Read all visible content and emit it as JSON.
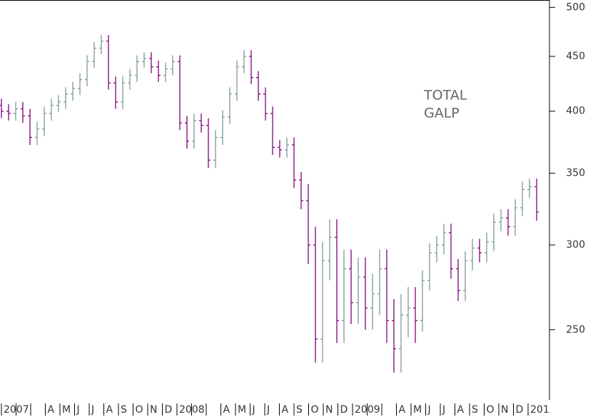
{
  "chart_data": {
    "type": "ohlc",
    "annotation": [
      "TOTAL",
      "GALP"
    ],
    "months": [
      "2007",
      null,
      null,
      "A",
      "M",
      "J",
      "J",
      "A",
      "S",
      "O",
      "N",
      "D",
      "2008",
      null,
      null,
      "A",
      "M",
      "J",
      "J",
      "A",
      "S",
      "O",
      "N",
      "D",
      "2009",
      null,
      null,
      "A",
      "M",
      "J",
      "J",
      "A",
      "S",
      "O",
      "N",
      "D",
      "201"
    ],
    "open": [
      405,
      400,
      398,
      402,
      396,
      378,
      385,
      398,
      405,
      408,
      415,
      420,
      428,
      445,
      458,
      465,
      425,
      408,
      425,
      432,
      445,
      448,
      440,
      432,
      438,
      445,
      390,
      375,
      392,
      388,
      360,
      378,
      395,
      415,
      440,
      450,
      430,
      415,
      398,
      370,
      368,
      372,
      345,
      330,
      300,
      245,
      290,
      305,
      255,
      285,
      265,
      280,
      262,
      270,
      285,
      255,
      240,
      258,
      262,
      255,
      278,
      295,
      300,
      308,
      285,
      272,
      290,
      298,
      295,
      302,
      315,
      318,
      312,
      325,
      338,
      340
    ],
    "high": [
      411,
      406,
      408,
      408,
      402,
      391,
      404,
      411,
      414,
      421,
      426,
      434,
      451,
      464,
      471,
      471,
      431,
      431,
      438,
      451,
      454,
      454,
      446,
      444,
      451,
      451,
      396,
      398,
      398,
      394,
      384,
      401,
      421,
      446,
      456,
      456,
      436,
      421,
      404,
      376,
      378,
      378,
      351,
      342,
      312,
      302,
      317,
      317,
      297,
      297,
      292,
      292,
      282,
      297,
      297,
      267,
      270,
      274,
      274,
      284,
      301,
      306,
      314,
      314,
      291,
      296,
      304,
      304,
      308,
      321,
      324,
      324,
      331,
      344,
      346,
      346
    ],
    "low": [
      394,
      392,
      392,
      390,
      372,
      372,
      379,
      392,
      399,
      402,
      409,
      414,
      422,
      439,
      452,
      419,
      402,
      402,
      419,
      426,
      439,
      434,
      426,
      426,
      432,
      384,
      369,
      369,
      382,
      354,
      354,
      372,
      389,
      409,
      434,
      424,
      409,
      392,
      364,
      362,
      362,
      339,
      324,
      288,
      233,
      233,
      278,
      243,
      243,
      253,
      253,
      250,
      250,
      258,
      243,
      228,
      228,
      246,
      243,
      249,
      272,
      289,
      294,
      279,
      266,
      266,
      284,
      289,
      289,
      296,
      309,
      306,
      306,
      319,
      332,
      316
    ],
    "close": [
      400,
      398,
      402,
      396,
      378,
      385,
      398,
      405,
      408,
      415,
      420,
      428,
      445,
      458,
      465,
      425,
      408,
      425,
      432,
      445,
      448,
      440,
      432,
      438,
      445,
      390,
      375,
      392,
      388,
      360,
      378,
      395,
      415,
      440,
      450,
      430,
      415,
      398,
      370,
      368,
      372,
      345,
      330,
      300,
      245,
      290,
      305,
      255,
      285,
      265,
      280,
      262,
      270,
      285,
      255,
      240,
      258,
      262,
      255,
      278,
      295,
      300,
      308,
      285,
      272,
      290,
      298,
      295,
      302,
      315,
      318,
      312,
      325,
      338,
      340,
      322
    ],
    "up_color": "#7f9898",
    "down_color": "#800080",
    "log_scale": true,
    "ylim": [
      215,
      508
    ],
    "yticks": [
      250,
      300,
      350,
      400,
      450,
      500
    ]
  }
}
